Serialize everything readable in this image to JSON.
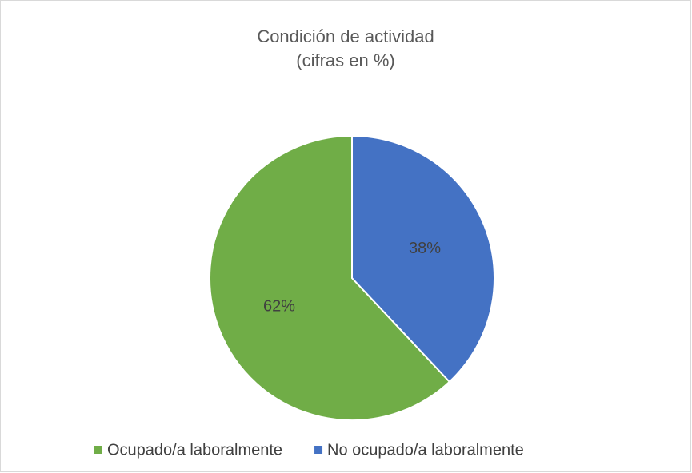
{
  "chart_data": {
    "type": "pie",
    "title": "Condición de actividad",
    "subtitle": "(cifras en %)",
    "categories": [
      "Ocupado/a laboralmente",
      "No ocupado/a laboralmente"
    ],
    "values": [
      62,
      38
    ],
    "value_labels": [
      "62%",
      "38%"
    ],
    "colors": [
      "#70ad47",
      "#4472c4"
    ],
    "legend": "bottom"
  }
}
